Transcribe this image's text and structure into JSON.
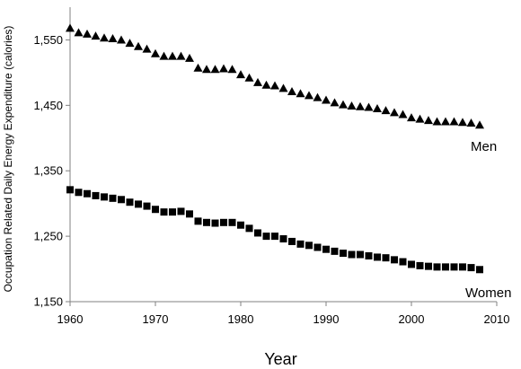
{
  "chart_data": {
    "type": "scatter",
    "xlabel": "Year",
    "ylabel": "Occupation Related Daily Energy Expenditure (calories)",
    "xlim": [
      1960,
      2010
    ],
    "ylim": [
      1150,
      1600
    ],
    "x_ticks": [
      1960,
      1970,
      1980,
      1990,
      2000,
      2010
    ],
    "y_ticks": [
      1150,
      1250,
      1350,
      1450,
      1550
    ],
    "x_tick_labels": [
      "1960",
      "1970",
      "1980",
      "1990",
      "2000",
      "2010"
    ],
    "y_tick_labels": [
      "1,150",
      "1,250",
      "1,350",
      "1,450",
      "1,550"
    ],
    "grid": false,
    "legend": "none",
    "x": [
      1960,
      1961,
      1962,
      1963,
      1964,
      1965,
      1966,
      1967,
      1968,
      1969,
      1970,
      1971,
      1972,
      1973,
      1974,
      1975,
      1976,
      1977,
      1978,
      1979,
      1980,
      1981,
      1982,
      1983,
      1984,
      1985,
      1986,
      1987,
      1988,
      1989,
      1990,
      1991,
      1992,
      1993,
      1994,
      1995,
      1996,
      1997,
      1998,
      1999,
      2000,
      2001,
      2002,
      2003,
      2004,
      2005,
      2006,
      2007,
      2008
    ],
    "series": [
      {
        "name": "Men",
        "marker": "triangle",
        "color": "#000000",
        "values": [
          1568,
          1561,
          1559,
          1556,
          1553,
          1552,
          1550,
          1545,
          1540,
          1536,
          1529,
          1525,
          1525,
          1525,
          1522,
          1507,
          1505,
          1505,
          1506,
          1505,
          1497,
          1492,
          1485,
          1481,
          1480,
          1476,
          1471,
          1468,
          1465,
          1462,
          1458,
          1454,
          1451,
          1449,
          1448,
          1447,
          1445,
          1442,
          1439,
          1436,
          1431,
          1429,
          1427,
          1425,
          1425,
          1425,
          1424,
          1423,
          1420
        ]
      },
      {
        "name": "Women",
        "marker": "square",
        "color": "#000000",
        "values": [
          1321,
          1317,
          1315,
          1312,
          1310,
          1308,
          1306,
          1302,
          1299,
          1296,
          1291,
          1287,
          1287,
          1288,
          1284,
          1273,
          1271,
          1270,
          1271,
          1271,
          1267,
          1262,
          1255,
          1250,
          1250,
          1246,
          1242,
          1238,
          1236,
          1233,
          1230,
          1227,
          1224,
          1222,
          1222,
          1220,
          1218,
          1217,
          1214,
          1211,
          1207,
          1205,
          1204,
          1203,
          1203,
          1203,
          1203,
          1202,
          1199
        ]
      }
    ]
  }
}
